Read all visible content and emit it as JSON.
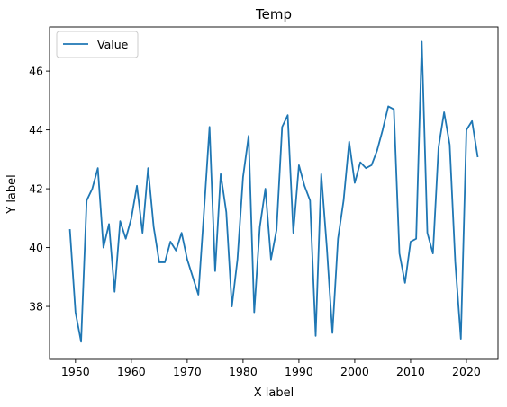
{
  "chart_data": {
    "type": "line",
    "title": "Temp",
    "xlabel": "X label",
    "ylabel": "Y label",
    "xlim": [
      1945.35,
      2025.65
    ],
    "ylim": [
      36.2,
      47.5
    ],
    "xticks": [
      1950,
      1960,
      1970,
      1980,
      1990,
      2000,
      2010,
      2020
    ],
    "yticks": [
      38,
      40,
      42,
      44,
      46
    ],
    "grid": false,
    "legend_position": "top-left",
    "line_color": "#1f77b4",
    "series": [
      {
        "name": "Value",
        "x": [
          1949,
          1950,
          1951,
          1952,
          1953,
          1954,
          1955,
          1956,
          1957,
          1958,
          1959,
          1960,
          1961,
          1962,
          1963,
          1964,
          1965,
          1966,
          1967,
          1968,
          1969,
          1970,
          1971,
          1972,
          1973,
          1974,
          1975,
          1976,
          1977,
          1978,
          1979,
          1980,
          1981,
          1982,
          1983,
          1984,
          1985,
          1986,
          1987,
          1988,
          1989,
          1990,
          1991,
          1992,
          1993,
          1994,
          1995,
          1996,
          1997,
          1998,
          1999,
          2000,
          2001,
          2002,
          2003,
          2004,
          2005,
          2006,
          2007,
          2008,
          2009,
          2010,
          2011,
          2012,
          2013,
          2014,
          2015,
          2016,
          2017,
          2018,
          2019,
          2020,
          2021,
          2022
        ],
        "values": [
          40.6,
          37.8,
          36.8,
          41.6,
          42.0,
          42.7,
          40.0,
          40.8,
          38.5,
          40.9,
          40.3,
          41.0,
          42.1,
          40.5,
          42.7,
          40.7,
          39.5,
          39.5,
          40.2,
          39.9,
          40.5,
          39.6,
          39.0,
          38.4,
          41.2,
          44.1,
          39.2,
          42.5,
          41.2,
          38.0,
          39.6,
          42.4,
          43.8,
          37.8,
          40.7,
          42.0,
          39.6,
          40.6,
          44.1,
          44.5,
          40.5,
          42.8,
          42.1,
          41.6,
          37.0,
          42.5,
          40.0,
          37.1,
          40.3,
          41.6,
          43.6,
          42.2,
          42.9,
          42.7,
          42.8,
          43.3,
          44.0,
          44.8,
          44.7,
          39.8,
          38.8,
          40.2,
          40.3,
          47.0,
          40.5,
          39.8,
          43.4,
          44.6,
          43.5,
          39.5,
          36.9,
          44.0,
          44.3,
          43.1
        ]
      }
    ]
  }
}
